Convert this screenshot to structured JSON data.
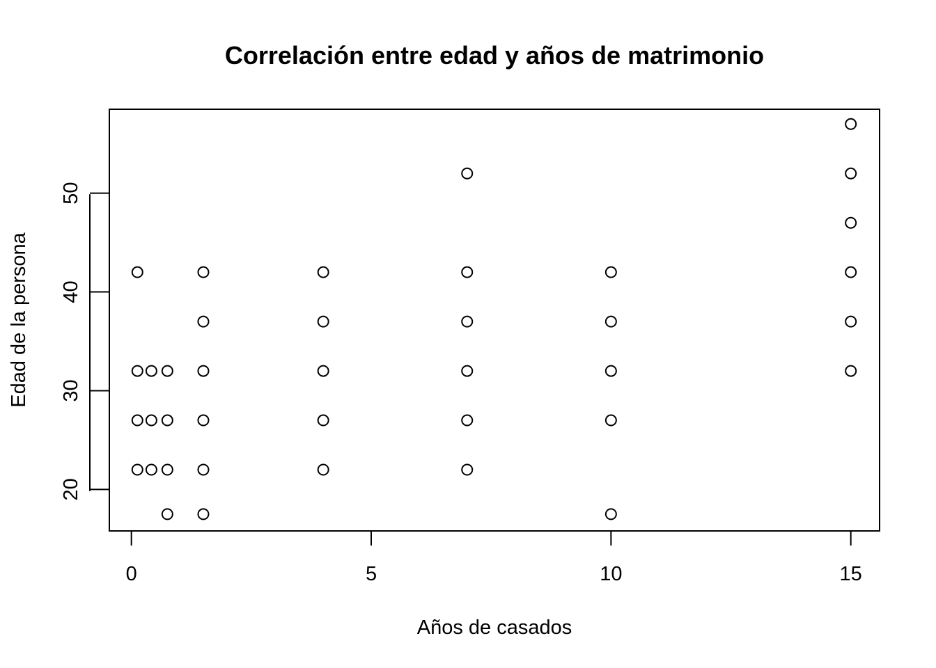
{
  "chart_data": {
    "type": "scatter",
    "title": "Correlación entre edad y años de matrimonio",
    "xlabel": "Años de casados",
    "ylabel": "Edad de la persona",
    "xlim": [
      -0.46,
      15.6
    ],
    "ylim": [
      15.8,
      58.5
    ],
    "x_ticks": [
      0,
      5,
      10,
      15
    ],
    "y_ticks": [
      20,
      30,
      40,
      50
    ],
    "grid": false,
    "marker": "open-circle",
    "points": [
      {
        "x": 0.125,
        "y": 42
      },
      {
        "x": 0.125,
        "y": 32
      },
      {
        "x": 0.125,
        "y": 27
      },
      {
        "x": 0.125,
        "y": 22
      },
      {
        "x": 0.417,
        "y": 32
      },
      {
        "x": 0.417,
        "y": 27
      },
      {
        "x": 0.417,
        "y": 22
      },
      {
        "x": 0.75,
        "y": 32
      },
      {
        "x": 0.75,
        "y": 27
      },
      {
        "x": 0.75,
        "y": 22
      },
      {
        "x": 0.75,
        "y": 17.5
      },
      {
        "x": 1.5,
        "y": 42
      },
      {
        "x": 1.5,
        "y": 37
      },
      {
        "x": 1.5,
        "y": 32
      },
      {
        "x": 1.5,
        "y": 27
      },
      {
        "x": 1.5,
        "y": 22
      },
      {
        "x": 1.5,
        "y": 17.5
      },
      {
        "x": 4,
        "y": 42
      },
      {
        "x": 4,
        "y": 37
      },
      {
        "x": 4,
        "y": 32
      },
      {
        "x": 4,
        "y": 27
      },
      {
        "x": 4,
        "y": 22
      },
      {
        "x": 7,
        "y": 52
      },
      {
        "x": 7,
        "y": 42
      },
      {
        "x": 7,
        "y": 37
      },
      {
        "x": 7,
        "y": 32
      },
      {
        "x": 7,
        "y": 27
      },
      {
        "x": 7,
        "y": 22
      },
      {
        "x": 10,
        "y": 42
      },
      {
        "x": 10,
        "y": 37
      },
      {
        "x": 10,
        "y": 32
      },
      {
        "x": 10,
        "y": 27
      },
      {
        "x": 10,
        "y": 17.5
      },
      {
        "x": 15,
        "y": 57
      },
      {
        "x": 15,
        "y": 52
      },
      {
        "x": 15,
        "y": 47
      },
      {
        "x": 15,
        "y": 42
      },
      {
        "x": 15,
        "y": 37
      },
      {
        "x": 15,
        "y": 32
      }
    ]
  }
}
